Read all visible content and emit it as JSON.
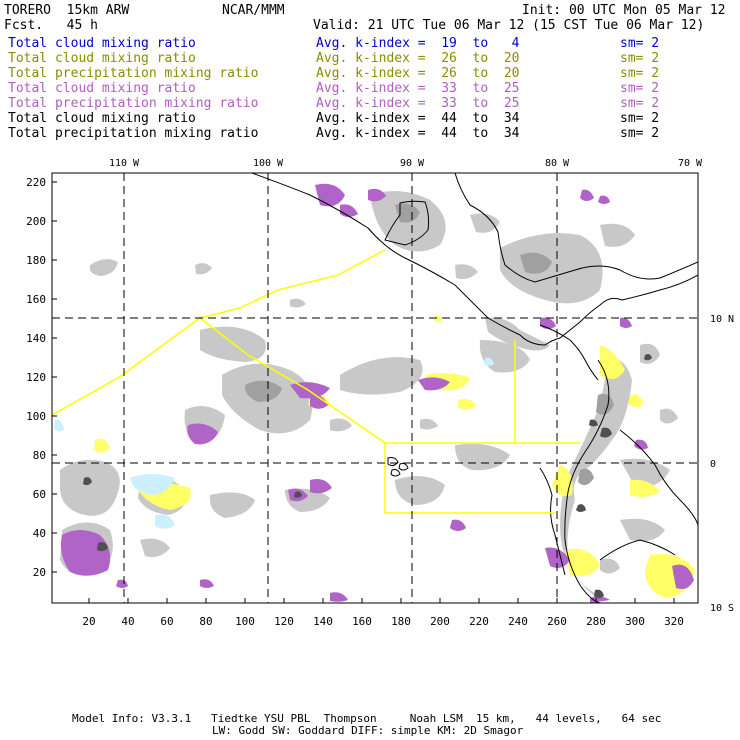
{
  "header": {
    "model": "TORERO  15km ARW",
    "center": "NCAR/MMM",
    "init": "Init: 00 UTC Mon 05 Mar 12",
    "fcst": "Fcst.   45 h",
    "valid": "Valid: 21 UTC Tue 06 Mar 12 (15 CST Tue 06 Mar 12)"
  },
  "legend": [
    {
      "field": "Total cloud mixing ratio",
      "kindex": "Avg. k-index =  19  to   4",
      "sm": "sm= 2",
      "color": "#0000cc"
    },
    {
      "field": "Total cloud mixing ratio",
      "kindex": "Avg. k-index =  26  to  20",
      "sm": "sm= 2",
      "color": "#8c8c00"
    },
    {
      "field": "Total precipitation mixing ratio",
      "kindex": "Avg. k-index =  26  to  20",
      "sm": "sm= 2",
      "color": "#8c8c00"
    },
    {
      "field": "Total cloud mixing ratio",
      "kindex": "Avg. k-index =  33  to  25",
      "sm": "sm= 2",
      "color": "#b05fc0"
    },
    {
      "field": "Total precipitation mixing ratio",
      "kindex": "Avg. k-index =  33  to  25",
      "sm": "sm= 2",
      "color": "#b05fc0"
    },
    {
      "field": "Total cloud mixing ratio",
      "kindex": "Avg. k-index =  44  to  34",
      "sm": "sm= 2",
      "color": "#000000"
    },
    {
      "field": "Total precipitation mixing ratio",
      "kindex": "Avg. k-index =  44  to  34",
      "sm": "sm= 2",
      "color": "#000000"
    }
  ],
  "axes": {
    "lon_labels": [
      "110 W",
      "100 W",
      "90 W",
      "80 W",
      "70 W"
    ],
    "lat_labels": [
      "10 N",
      "0",
      "10 S"
    ],
    "y_ticks": [
      "220",
      "200",
      "180",
      "160",
      "140",
      "120",
      "100",
      "80",
      "60",
      "40",
      "20"
    ],
    "x_ticks": [
      "20",
      "40",
      "60",
      "80",
      "100",
      "120",
      "140",
      "160",
      "180",
      "200",
      "220",
      "240",
      "260",
      "280",
      "300",
      "320"
    ]
  },
  "footer": {
    "line1": "Model Info: V3.3.1   Tiedtke YSU PBL  Thompson     Noah LSM  15 km,   44 levels,   64 sec",
    "line2": "LW: Godd SW: Goddard DIFF: simple KM: 2D Smagor"
  },
  "colors": {
    "cloud_light": "#c8c8c8",
    "cloud_mid": "#a0a0a0",
    "cloud_dark": "#505050",
    "precip_yellow": "#ffff66",
    "precip_purple": "#b064c8",
    "cyan": "#ccf0ff",
    "boundary": "#ffff00"
  }
}
